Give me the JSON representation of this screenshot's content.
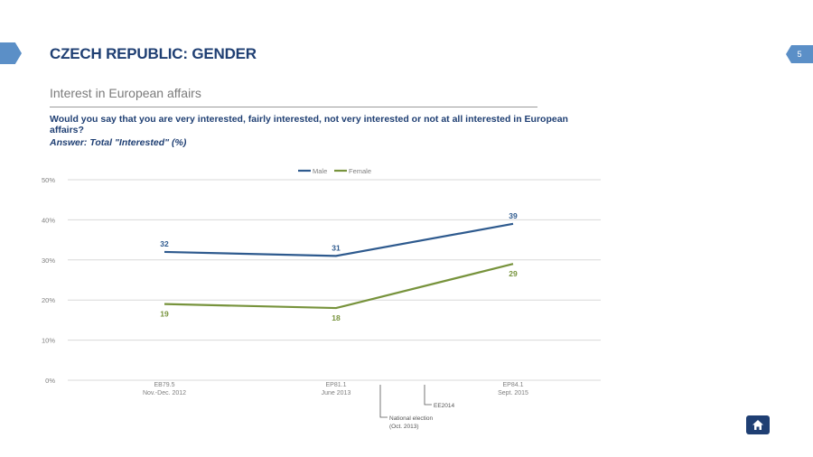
{
  "header": {
    "title": "CZECH REPUBLIC: GENDER",
    "page_number": "5",
    "subtitle": "Interest in European affairs",
    "question": "Would you say that you are very interested, fairly interested, not very interested or not at all interested in European affairs?",
    "answer": "Answer: Total \"Interested\" (%)"
  },
  "colors": {
    "male": "#2e5a8e",
    "female": "#77933c",
    "title": "#1f3f73",
    "grid": "#d9d9d9"
  },
  "home_icon": "home-icon",
  "chart_data": {
    "type": "line",
    "x_positions": [
      0,
      1,
      2
    ],
    "categories": [
      [
        "EB79.5",
        "Nov.-Dec. 2012"
      ],
      [
        "EP81.1",
        "June 2013"
      ],
      [
        "EP84.1",
        "Sept. 2015"
      ]
    ],
    "series": [
      {
        "name": "Male",
        "values": [
          32,
          31,
          39
        ]
      },
      {
        "name": "Female",
        "values": [
          19,
          18,
          29
        ]
      }
    ],
    "ylim": [
      0,
      50
    ],
    "yticks": [
      "0%",
      "10%",
      "20%",
      "30%",
      "40%",
      "50%"
    ],
    "legend": "top-center",
    "grid": true,
    "annotations": [
      {
        "x": 1.25,
        "lines": [
          "National election",
          "(Oct. 2013)"
        ],
        "depth": 2
      },
      {
        "x": 1.5,
        "lines": [
          "EE2014"
        ],
        "depth": 1
      }
    ]
  }
}
